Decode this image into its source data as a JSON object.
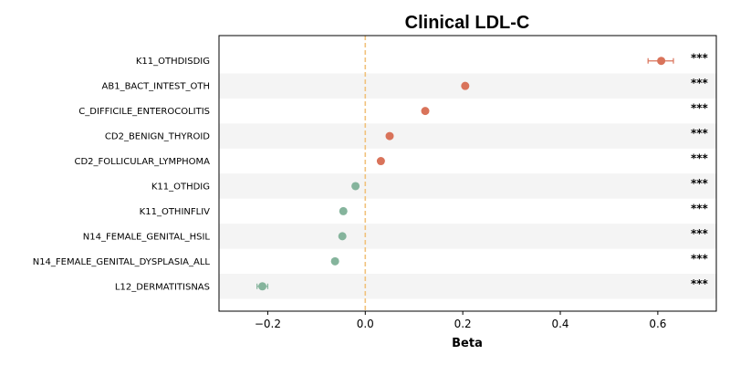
{
  "chart_data": {
    "type": "scatter",
    "title": "Clinical LDL-C",
    "xlabel": "Beta",
    "ylabel": "",
    "xlim": [
      -0.3,
      0.72
    ],
    "xticks": [
      -0.2,
      0.0,
      0.2,
      0.4,
      0.6
    ],
    "xtick_labels": [
      "−0.2",
      "0.0",
      "0.2",
      "0.4",
      "0.6"
    ],
    "reference_line": 0.0,
    "row_striping": true,
    "colors": {
      "positive": "#d9735a",
      "negative": "#85b49c",
      "reference": "#f1c27d",
      "stripe": "#f4f4f4"
    },
    "points": [
      {
        "label": "K11_OTHDISDIG",
        "beta": 0.607,
        "ci_low": 0.58,
        "ci_high": 0.632,
        "significance": "***"
      },
      {
        "label": "AB1_BACT_INTEST_OTH",
        "beta": 0.205,
        "ci_low": 0.201,
        "ci_high": 0.209,
        "significance": "***"
      },
      {
        "label": "C_DIFFICILE_ENTEROCOLITIS",
        "beta": 0.123,
        "ci_low": 0.12,
        "ci_high": 0.126,
        "significance": "***"
      },
      {
        "label": "CD2_BENIGN_THYROID",
        "beta": 0.05,
        "ci_low": 0.047,
        "ci_high": 0.053,
        "significance": "***"
      },
      {
        "label": "CD2_FOLLICULAR_LYMPHOMA",
        "beta": 0.032,
        "ci_low": 0.029,
        "ci_high": 0.035,
        "significance": "***"
      },
      {
        "label": "K11_OTHDIG",
        "beta": -0.02,
        "ci_low": -0.023,
        "ci_high": -0.017,
        "significance": "***"
      },
      {
        "label": "K11_OTHINFLIV",
        "beta": -0.045,
        "ci_low": -0.048,
        "ci_high": -0.042,
        "significance": "***"
      },
      {
        "label": "N14_FEMALE_GENITAL_HSIL",
        "beta": -0.047,
        "ci_low": -0.05,
        "ci_high": -0.044,
        "significance": "***"
      },
      {
        "label": "N14_FEMALE_GENITAL_DYSPLASIA_ALL",
        "beta": -0.062,
        "ci_low": -0.065,
        "ci_high": -0.059,
        "significance": "***"
      },
      {
        "label": "L12_DERMATITISNAS",
        "beta": -0.211,
        "ci_low": -0.222,
        "ci_high": -0.2,
        "significance": "***"
      }
    ]
  }
}
